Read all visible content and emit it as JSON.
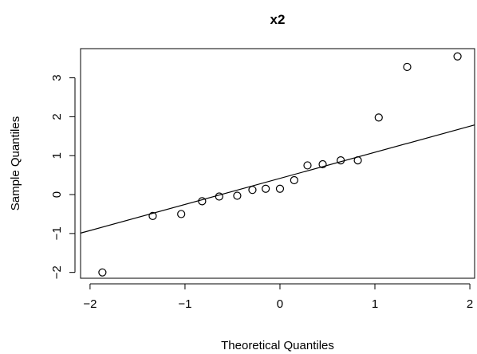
{
  "chart_data": {
    "type": "scatter",
    "title": "x2",
    "xlabel": "Theoretical Quantiles",
    "ylabel": "Sample Quantiles",
    "xlim": [
      -2.1,
      2.05
    ],
    "ylim": [
      -2.15,
      3.75
    ],
    "x_ticks": [
      -2,
      -1,
      0,
      1,
      2
    ],
    "x_tick_labels": [
      "−2",
      "−1",
      "0",
      "1",
      "2"
    ],
    "y_ticks": [
      -2,
      -1,
      0,
      1,
      2,
      3
    ],
    "y_tick_labels": [
      "−2",
      "−1",
      "0",
      "1",
      "2",
      "3"
    ],
    "grid": false,
    "points": {
      "x": [
        -1.87,
        -1.34,
        -1.04,
        -0.82,
        -0.64,
        -0.45,
        -0.29,
        -0.15,
        0.0,
        0.15,
        0.29,
        0.45,
        0.64,
        0.82,
        1.04,
        1.34,
        1.87
      ],
      "y": [
        -2.0,
        -0.55,
        -0.5,
        -0.17,
        -0.05,
        -0.03,
        0.12,
        0.15,
        0.15,
        0.37,
        0.75,
        0.78,
        0.88,
        0.88,
        1.98,
        3.28,
        3.55
      ]
    },
    "reference_line": {
      "x": [
        -2.1,
        2.05
      ],
      "y": [
        -0.99,
        1.79
      ]
    }
  }
}
